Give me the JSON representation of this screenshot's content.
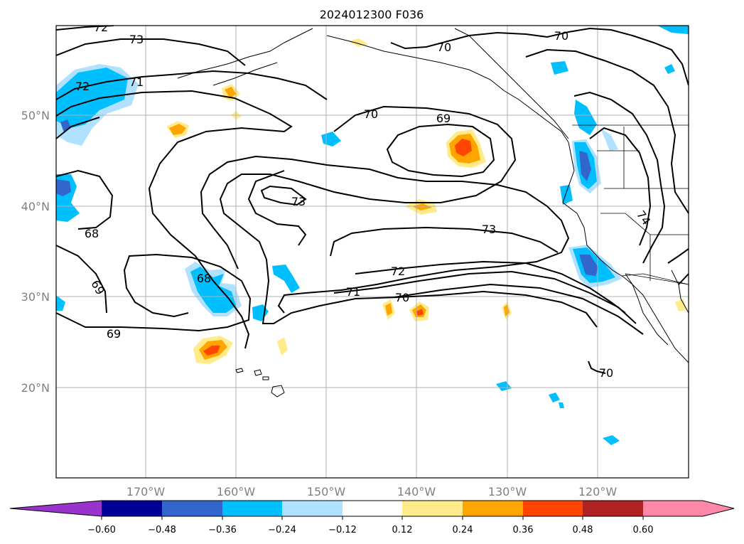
{
  "title": "2024012300 F036",
  "lat_labels": [
    "50°N",
    "40°N",
    "30°N",
    "20°N"
  ],
  "lon_labels": [
    "170°W",
    "160°W",
    "150°W",
    "140°W",
    "130°W",
    "120°W"
  ],
  "contour_labels": [
    "72",
    "73",
    "71",
    "72",
    "70",
    "70",
    "70",
    "69",
    "73",
    "68",
    "73",
    "72",
    "71",
    "70",
    "69",
    "68",
    "69",
    "74",
    "70"
  ],
  "colorbar": {
    "ticks": [
      "−0.60",
      "−0.48",
      "−0.36",
      "−0.24",
      "−0.12",
      "0.12",
      "0.24",
      "0.36",
      "0.48",
      "0.60"
    ],
    "colors": {
      "under": "#9933cc",
      "bins": [
        "#000099",
        "#3366cc",
        "#00bfff",
        "#b0e2ff",
        "#ffffff",
        "#ffeb8a",
        "#ffa500",
        "#ff4500",
        "#b22222",
        "#ff88aa"
      ],
      "over": "#ff88aa"
    }
  }
}
